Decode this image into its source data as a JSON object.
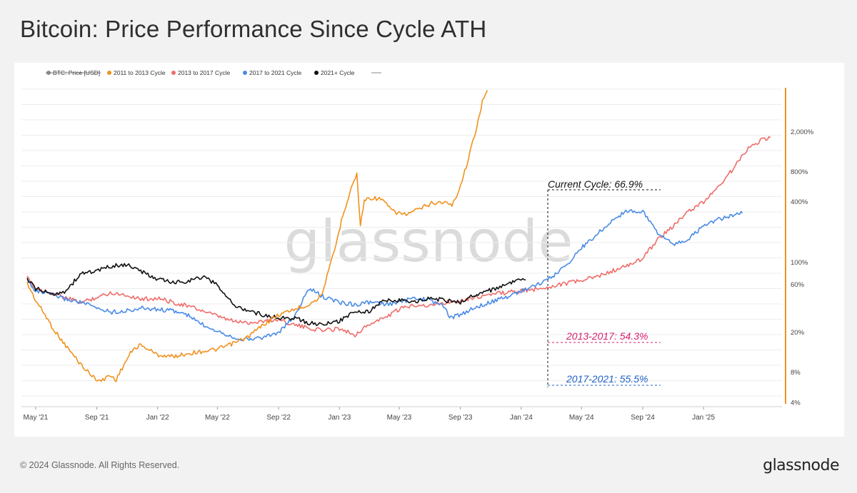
{
  "page": {
    "title": "Bitcoin: Price Performance Since Cycle ATH",
    "copyright": "© 2024 Glassnode. All Rights Reserved.",
    "logo_text": "glassnode",
    "watermark": "glassnode"
  },
  "colors": {
    "orange": "#f0921e",
    "red": "#ee6d6a",
    "blue": "#4a8be6",
    "black": "#111111",
    "grey": "#8c8c8c",
    "annot_pink": "#d6206e",
    "annot_blue": "#2062c4"
  },
  "chart_data": {
    "type": "line",
    "title": "Bitcoin: Price Performance Since Cycle ATH",
    "y_scale": "log",
    "legend_position": "top-left",
    "legend": [
      {
        "label": "BTC: Price [USD]",
        "color": "#8c8c8c",
        "struck": true
      },
      {
        "label": "2011 to 2013 Cycle",
        "color": "#f0921e"
      },
      {
        "label": "2013 to 2017 Cycle",
        "color": "#ee6d6a"
      },
      {
        "label": "2017 to 2021 Cycle",
        "color": "#4a8be6"
      },
      {
        "label": "2021+ Cycle",
        "color": "#111111"
      }
    ],
    "x_ticks": [
      "May '21",
      "Sep '21",
      "Jan '22",
      "May '22",
      "Sep '22",
      "Jan '23",
      "May '23",
      "Sep '23",
      "Jan '24",
      "May '24",
      "Sep '24",
      "Jan '25"
    ],
    "y_ticks": [
      "2,000%",
      "800%",
      "400%",
      "100%",
      "60%",
      "20%",
      "8%",
      "4%"
    ],
    "annotations": [
      {
        "text": "Current Cycle: 66.9%",
        "color": "#111111"
      },
      {
        "text": "2013-2017: 54.3%",
        "color": "#d6206e"
      },
      {
        "text": "2017-2021: 55.5%",
        "color": "#2062c4"
      }
    ],
    "x_domain": [
      "2021-04-14",
      "2025-05-20"
    ],
    "series": [
      {
        "name": "2011 to 2013 Cycle",
        "color": "#f0921e",
        "points": [
          [
            "2021-04-14",
            62
          ],
          [
            "2021-05-01",
            42
          ],
          [
            "2021-05-20",
            30
          ],
          [
            "2021-06-05",
            22
          ],
          [
            "2021-06-25",
            16
          ],
          [
            "2021-07-15",
            12
          ],
          [
            "2021-08-05",
            9
          ],
          [
            "2021-08-25",
            7.2
          ],
          [
            "2021-09-10",
            6.5
          ],
          [
            "2021-09-25",
            7.5
          ],
          [
            "2021-10-10",
            6.8
          ],
          [
            "2021-10-25",
            9.5
          ],
          [
            "2021-11-10",
            13
          ],
          [
            "2021-11-25",
            15
          ],
          [
            "2021-12-10",
            14
          ],
          [
            "2021-12-31",
            12
          ],
          [
            "2022-02-01",
            11.5
          ],
          [
            "2022-03-01",
            12.3
          ],
          [
            "2022-04-01",
            13
          ],
          [
            "2022-05-01",
            13.6
          ],
          [
            "2022-06-01",
            15.5
          ],
          [
            "2022-07-01",
            18
          ],
          [
            "2022-08-01",
            24
          ],
          [
            "2022-09-01",
            30
          ],
          [
            "2022-10-01",
            34
          ],
          [
            "2022-11-01",
            38
          ],
          [
            "2022-11-25",
            46
          ],
          [
            "2022-12-10",
            80
          ],
          [
            "2022-12-25",
            150
          ],
          [
            "2023-01-08",
            300
          ],
          [
            "2023-01-25",
            560
          ],
          [
            "2023-02-05",
            760
          ],
          [
            "2023-02-12",
            230
          ],
          [
            "2023-02-20",
            420
          ],
          [
            "2023-03-05",
            440
          ],
          [
            "2023-03-25",
            430
          ],
          [
            "2023-04-20",
            320
          ],
          [
            "2023-05-15",
            300
          ],
          [
            "2023-06-10",
            340
          ],
          [
            "2023-07-05",
            390
          ],
          [
            "2023-07-30",
            400
          ],
          [
            "2023-08-15",
            370
          ],
          [
            "2023-08-30",
            540
          ],
          [
            "2023-09-15",
            1000
          ],
          [
            "2023-10-01",
            2000
          ],
          [
            "2023-10-15",
            4000
          ],
          [
            "2023-10-25",
            5200
          ]
        ]
      },
      {
        "name": "2013 to 2017 Cycle",
        "color": "#ee6d6a",
        "points": [
          [
            "2021-04-14",
            70
          ],
          [
            "2021-05-01",
            55
          ],
          [
            "2021-06-01",
            50
          ],
          [
            "2021-07-01",
            44
          ],
          [
            "2021-08-01",
            40
          ],
          [
            "2021-09-01",
            45
          ],
          [
            "2021-10-01",
            50
          ],
          [
            "2021-11-01",
            47
          ],
          [
            "2021-12-01",
            43
          ],
          [
            "2022-01-01",
            44
          ],
          [
            "2022-02-01",
            40
          ],
          [
            "2022-03-01",
            37
          ],
          [
            "2022-04-01",
            33
          ],
          [
            "2022-05-01",
            29
          ],
          [
            "2022-06-01",
            26
          ],
          [
            "2022-07-01",
            25
          ],
          [
            "2022-08-01",
            26
          ],
          [
            "2022-09-01",
            27
          ],
          [
            "2022-10-01",
            24
          ],
          [
            "2022-11-01",
            22
          ],
          [
            "2022-12-01",
            21
          ],
          [
            "2023-01-01",
            22
          ],
          [
            "2023-02-01",
            19
          ],
          [
            "2023-03-01",
            24
          ],
          [
            "2023-04-01",
            28
          ],
          [
            "2023-05-01",
            34
          ],
          [
            "2023-06-01",
            38
          ],
          [
            "2023-07-01",
            37
          ],
          [
            "2023-08-01",
            40
          ],
          [
            "2023-09-01",
            42
          ],
          [
            "2023-10-01",
            45
          ],
          [
            "2023-11-01",
            48
          ],
          [
            "2023-12-01",
            50
          ],
          [
            "2024-01-01",
            52
          ],
          [
            "2024-02-01",
            54
          ],
          [
            "2024-03-01",
            58
          ],
          [
            "2024-04-01",
            62
          ],
          [
            "2024-05-01",
            66
          ],
          [
            "2024-06-01",
            72
          ],
          [
            "2024-07-01",
            82
          ],
          [
            "2024-08-01",
            92
          ],
          [
            "2024-09-01",
            110
          ],
          [
            "2024-10-01",
            170
          ],
          [
            "2024-11-01",
            230
          ],
          [
            "2024-12-01",
            320
          ],
          [
            "2025-01-01",
            400
          ],
          [
            "2025-02-01",
            580
          ],
          [
            "2025-03-01",
            850
          ],
          [
            "2025-04-01",
            1400
          ],
          [
            "2025-05-01",
            1700
          ],
          [
            "2025-05-15",
            1750
          ]
        ]
      },
      {
        "name": "2017 to 2021 Cycle",
        "color": "#4a8be6",
        "points": [
          [
            "2021-04-14",
            68
          ],
          [
            "2021-05-01",
            52
          ],
          [
            "2021-06-01",
            48
          ],
          [
            "2021-07-01",
            43
          ],
          [
            "2021-08-01",
            40
          ],
          [
            "2021-09-01",
            35
          ],
          [
            "2021-10-01",
            32
          ],
          [
            "2021-11-01",
            33
          ],
          [
            "2021-12-01",
            35
          ],
          [
            "2022-01-01",
            34
          ],
          [
            "2022-02-01",
            33
          ],
          [
            "2022-03-01",
            30
          ],
          [
            "2022-04-01",
            24
          ],
          [
            "2022-05-01",
            21
          ],
          [
            "2022-06-01",
            18
          ],
          [
            "2022-07-01",
            17
          ],
          [
            "2022-08-01",
            18
          ],
          [
            "2022-09-01",
            20
          ],
          [
            "2022-10-01",
            28
          ],
          [
            "2022-11-01",
            55
          ],
          [
            "2022-12-01",
            45
          ],
          [
            "2023-01-01",
            40
          ],
          [
            "2023-02-01",
            38
          ],
          [
            "2023-03-01",
            40
          ],
          [
            "2023-04-01",
            38
          ],
          [
            "2023-05-01",
            40
          ],
          [
            "2023-06-01",
            44
          ],
          [
            "2023-07-01",
            42
          ],
          [
            "2023-08-01",
            36
          ],
          [
            "2023-08-10",
            28
          ],
          [
            "2023-09-01",
            30
          ],
          [
            "2023-10-01",
            36
          ],
          [
            "2023-11-01",
            40
          ],
          [
            "2023-12-01",
            45
          ],
          [
            "2024-01-01",
            52
          ],
          [
            "2024-02-01",
            60
          ],
          [
            "2024-03-01",
            70
          ],
          [
            "2024-04-01",
            95
          ],
          [
            "2024-05-01",
            140
          ],
          [
            "2024-06-01",
            190
          ],
          [
            "2024-07-01",
            260
          ],
          [
            "2024-08-01",
            330
          ],
          [
            "2024-09-01",
            320
          ],
          [
            "2024-10-01",
            200
          ],
          [
            "2024-11-01",
            150
          ],
          [
            "2024-12-01",
            170
          ],
          [
            "2025-01-01",
            230
          ],
          [
            "2025-02-01",
            270
          ],
          [
            "2025-03-01",
            290
          ],
          [
            "2025-03-20",
            310
          ]
        ]
      },
      {
        "name": "2021+ Cycle",
        "color": "#111111",
        "points": [
          [
            "2021-04-14",
            68
          ],
          [
            "2021-05-01",
            55
          ],
          [
            "2021-06-01",
            48
          ],
          [
            "2021-07-01",
            52
          ],
          [
            "2021-08-01",
            78
          ],
          [
            "2021-09-01",
            82
          ],
          [
            "2021-10-01",
            92
          ],
          [
            "2021-11-01",
            95
          ],
          [
            "2021-12-01",
            80
          ],
          [
            "2022-01-01",
            68
          ],
          [
            "2022-02-01",
            63
          ],
          [
            "2022-03-01",
            65
          ],
          [
            "2022-04-01",
            72
          ],
          [
            "2022-05-01",
            60
          ],
          [
            "2022-06-01",
            38
          ],
          [
            "2022-07-01",
            33
          ],
          [
            "2022-08-01",
            30
          ],
          [
            "2022-09-01",
            28
          ],
          [
            "2022-10-01",
            28
          ],
          [
            "2022-11-01",
            25
          ],
          [
            "2022-12-01",
            24
          ],
          [
            "2023-01-01",
            26
          ],
          [
            "2023-02-01",
            33
          ],
          [
            "2023-03-01",
            32
          ],
          [
            "2023-04-01",
            42
          ],
          [
            "2023-05-01",
            42
          ],
          [
            "2023-06-01",
            40
          ],
          [
            "2023-07-01",
            44
          ],
          [
            "2023-08-01",
            42
          ],
          [
            "2023-09-01",
            40
          ],
          [
            "2023-10-01",
            48
          ],
          [
            "2023-11-01",
            53
          ],
          [
            "2023-12-01",
            60
          ],
          [
            "2024-01-01",
            67
          ],
          [
            "2024-01-10",
            66.9
          ]
        ]
      }
    ]
  }
}
